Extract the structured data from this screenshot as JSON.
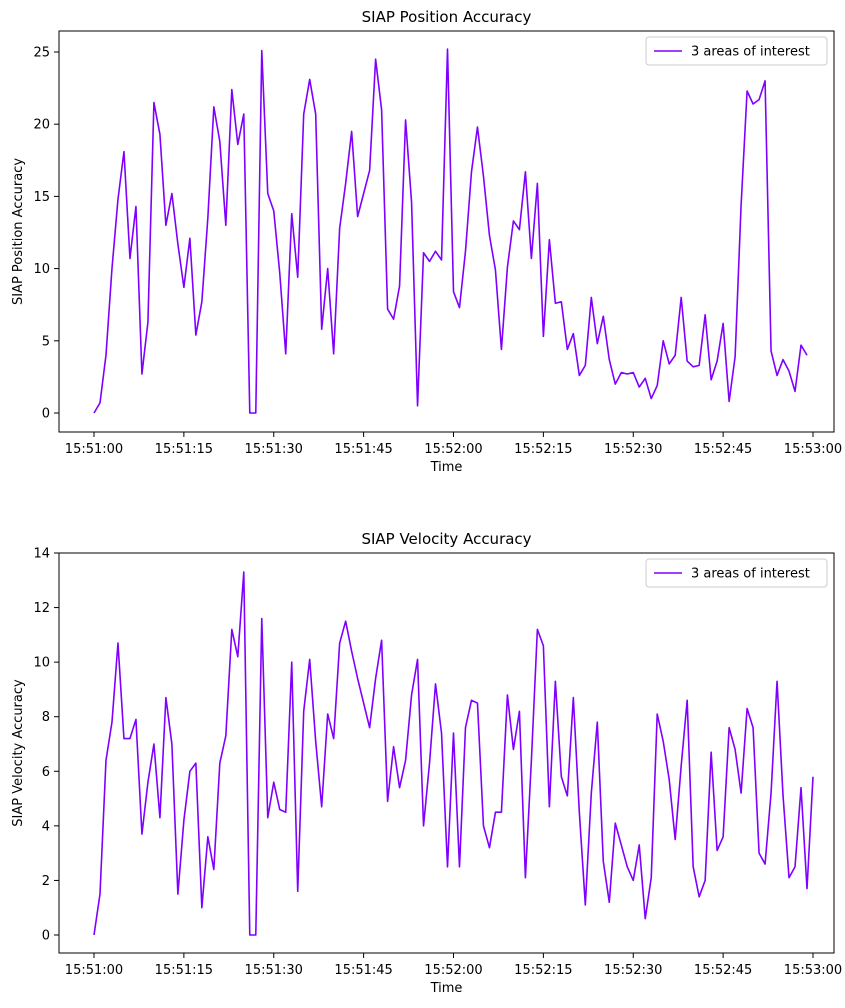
{
  "chart_data": [
    {
      "type": "line",
      "title": "SIAP Position Accuracy",
      "xlabel": "Time",
      "ylabel": "SIAP Position Accuracy",
      "ylim": [
        0,
        25
      ],
      "xlim": [
        "15:51:00",
        "15:53:00"
      ],
      "x_ticks": [
        "15:51:00",
        "15:51:15",
        "15:51:30",
        "15:51:45",
        "15:52:00",
        "15:52:15",
        "15:52:30",
        "15:52:45",
        "15:53:00"
      ],
      "y_ticks": [
        "0",
        "5",
        "10",
        "15",
        "20",
        "25"
      ],
      "legend": "top-right",
      "grid": false,
      "color": "#7f00ff",
      "series": [
        {
          "name": "3 areas of interest",
          "x_start": "15:51:00",
          "x_step_seconds": 1,
          "values": [
            0,
            0.7,
            4,
            10,
            14.8,
            18.1,
            10.7,
            14.3,
            2.7,
            6.3,
            21.5,
            19.3,
            13,
            15.2,
            11.7,
            8.7,
            12.1,
            5.4,
            7.7,
            13.5,
            21.2,
            18.8,
            13,
            22.4,
            18.6,
            20.7,
            0,
            0,
            25.1,
            15.2,
            14,
            9.7,
            4.1,
            13.8,
            9.4,
            20.7,
            23.1,
            20.7,
            5.8,
            10,
            4.1,
            12.8,
            15.9,
            19.5,
            13.6,
            15.2,
            16.8,
            24.5,
            21,
            7.2,
            6.5,
            8.8,
            20.3,
            14.6,
            0.5,
            11.1,
            10.5,
            11.2,
            10.6,
            25.2,
            8.4,
            7.3,
            11.2,
            16.7,
            19.8,
            16.4,
            12.3,
            9.9,
            4.4,
            10.1,
            13.3,
            12.7,
            16.7,
            10.7,
            15.9,
            5.3,
            12,
            7.6,
            7.7,
            4.4,
            5.5,
            2.6,
            3.3,
            8,
            4.8,
            6.7,
            3.7,
            2,
            2.8,
            2.7,
            2.8,
            1.8,
            2.4,
            1,
            1.9,
            5,
            3.4,
            4,
            8,
            3.6,
            3.2,
            3.3,
            6.8,
            2.3,
            3.6,
            6.2,
            0.8,
            3.9,
            14.4,
            22.3,
            21.4,
            21.7,
            23,
            4.3,
            2.6,
            3.7,
            2.9,
            1.5,
            4.7,
            4
          ]
        }
      ]
    },
    {
      "type": "line",
      "title": "SIAP Velocity Accuracy",
      "xlabel": "Time",
      "ylabel": "SIAP Velocity Accuracy",
      "ylim": [
        0,
        14
      ],
      "xlim": [
        "15:51:00",
        "15:53:00"
      ],
      "x_ticks": [
        "15:51:00",
        "15:51:15",
        "15:51:30",
        "15:51:45",
        "15:52:00",
        "15:52:15",
        "15:52:30",
        "15:52:45",
        "15:53:00"
      ],
      "y_ticks": [
        "0",
        "2",
        "4",
        "6",
        "8",
        "10",
        "12",
        "14"
      ],
      "legend": "top-right",
      "grid": false,
      "color": "#7f00ff",
      "series": [
        {
          "name": "3 areas of interest",
          "x_start": "15:51:00",
          "x_step_seconds": 1,
          "values": [
            0,
            1.5,
            6.4,
            7.8,
            10.7,
            7.2,
            7.2,
            7.9,
            3.7,
            5.6,
            7,
            4.3,
            8.7,
            7,
            1.5,
            4.2,
            6,
            6.3,
            1,
            3.6,
            2.4,
            6.3,
            7.3,
            11.2,
            10.2,
            13.3,
            0,
            0,
            11.6,
            4.3,
            5.6,
            4.6,
            4.5,
            10,
            1.6,
            8.2,
            10.1,
            7.1,
            4.7,
            8.1,
            7.2,
            10.7,
            11.5,
            10.4,
            9.4,
            8.5,
            7.6,
            9.4,
            10.8,
            4.9,
            6.9,
            5.4,
            6.4,
            8.8,
            10.1,
            4,
            6.3,
            9.2,
            7.4,
            2.5,
            7.4,
            2.5,
            7.6,
            8.6,
            8.5,
            4,
            3.2,
            4.5,
            4.5,
            8.8,
            6.8,
            8.2,
            2.1,
            6.4,
            11.2,
            10.6,
            4.7,
            9.3,
            5.8,
            5.1,
            8.7,
            4.5,
            1.1,
            5.2,
            7.8,
            2.7,
            1.2,
            4.1,
            3.3,
            2.5,
            2,
            3.3,
            0.6,
            2.1,
            8.1,
            7.1,
            5.7,
            3.5,
            6.2,
            8.6,
            2.5,
            1.4,
            2,
            6.7,
            3.1,
            3.6,
            7.6,
            6.8,
            5.2,
            8.3,
            7.6,
            3,
            2.6,
            5.2,
            9.3,
            5.1,
            2.1,
            2.5,
            5.4,
            1.7,
            5.8
          ]
        }
      ]
    }
  ]
}
